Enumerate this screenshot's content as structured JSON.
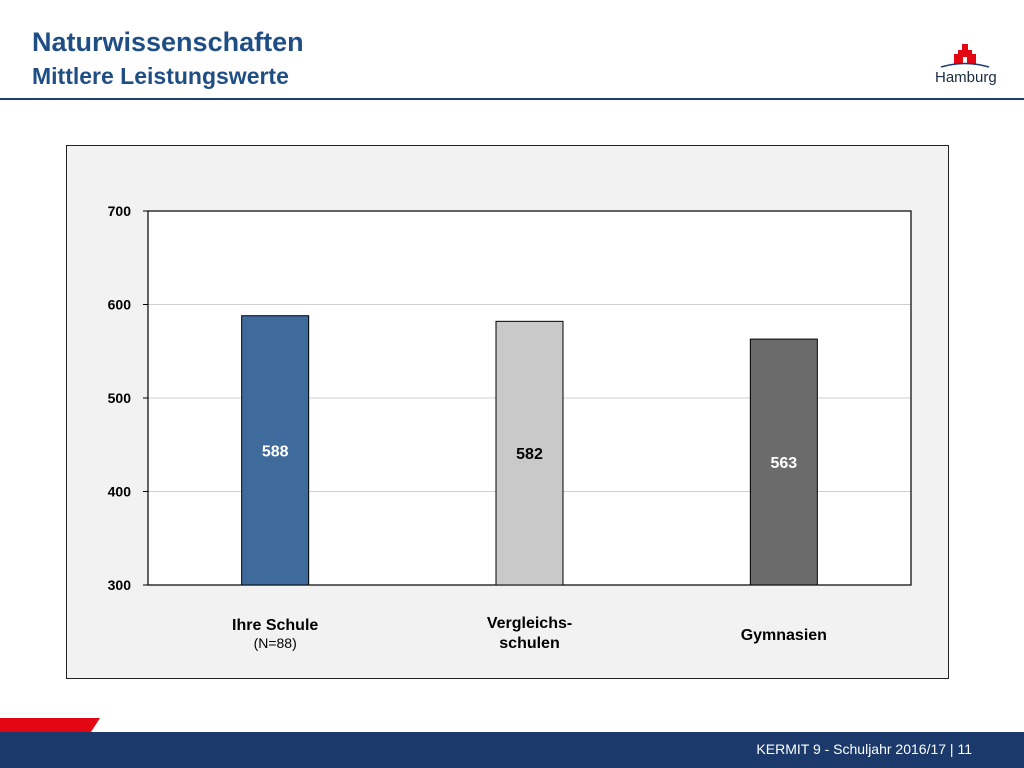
{
  "header": {
    "title": "Naturwissenschaften",
    "subtitle": "Mittlere Leistungswerte",
    "logo_text": "Hamburg"
  },
  "footer": {
    "text": "KERMIT 9 - Schuljahr 2016/17 | 11"
  },
  "colors": {
    "title": "#1f4e85",
    "brand_navy": "#1b3a6b",
    "brand_red": "#e30613",
    "bar_ihre_schule": "#3f6a9c",
    "bar_vergleichsschulen": "#c9c9c9",
    "bar_gymnasien": "#6b6b6b"
  },
  "chart_data": {
    "type": "bar",
    "categories": [
      {
        "lines": [
          "Ihre Schule"
        ],
        "note": "(N=88)"
      },
      {
        "lines": [
          "Vergleichs-",
          "schulen"
        ],
        "note": ""
      },
      {
        "lines": [
          "Gymnasien"
        ],
        "note": ""
      }
    ],
    "values": [
      588,
      582,
      563
    ],
    "value_label_colors": [
      "#ffffff",
      "#000000",
      "#ffffff"
    ],
    "ylim": [
      300,
      700
    ],
    "yticks": [
      300,
      400,
      500,
      600,
      700
    ],
    "grid": true
  }
}
